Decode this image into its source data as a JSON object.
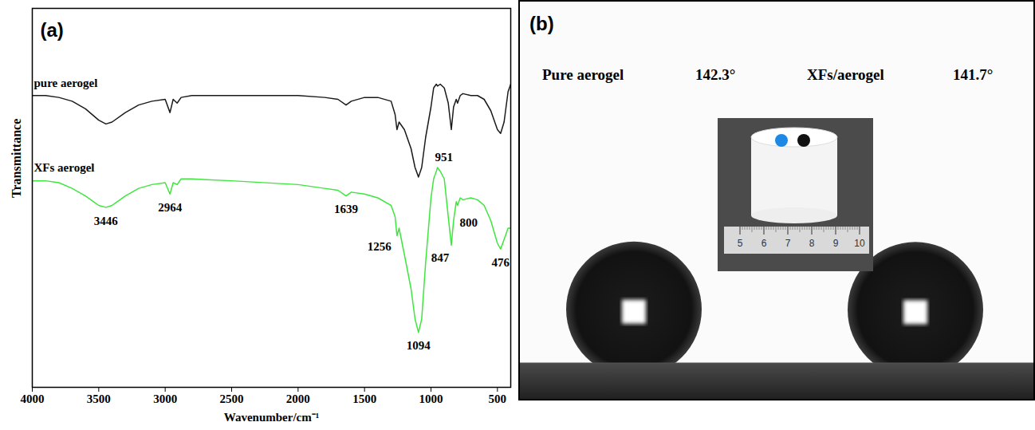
{
  "chart_data": {
    "type": "line",
    "panel": "(a)",
    "xlabel": "Wavenumber/cm⁻¹",
    "ylabel": "Transmittance",
    "xlim": [
      4000,
      400
    ],
    "xticks": [
      4000,
      3500,
      3000,
      2500,
      2000,
      1500,
      1000,
      500
    ],
    "ylim": [
      0,
      100
    ],
    "tick_labels": "x",
    "x": [
      4000,
      3900,
      3800,
      3700,
      3600,
      3500,
      3446,
      3400,
      3300,
      3200,
      3100,
      3000,
      2964,
      2940,
      2910,
      2880,
      2800,
      2500,
      2000,
      1800,
      1700,
      1639,
      1600,
      1500,
      1400,
      1300,
      1270,
      1256,
      1240,
      1200,
      1150,
      1120,
      1094,
      1070,
      1040,
      1000,
      980,
      960,
      951,
      930,
      900,
      870,
      847,
      830,
      810,
      800,
      780,
      760,
      700,
      650,
      600,
      550,
      500,
      476,
      450,
      420,
      400
    ],
    "series": [
      {
        "name": "pure aerogel",
        "color": "#1a1a1a",
        "values": [
          77,
          77,
          76.5,
          75.5,
          73.5,
          70.5,
          69.5,
          70,
          72.5,
          74.5,
          75.5,
          76,
          72.5,
          76,
          75,
          76.5,
          77,
          77,
          77,
          76.5,
          76,
          74.5,
          75.5,
          76.5,
          76.5,
          75.5,
          72,
          68,
          70,
          68,
          63,
          58,
          55.5,
          58,
          66,
          74,
          79,
          80,
          79.5,
          80,
          79,
          75,
          68,
          74,
          76,
          75,
          77,
          77.5,
          77,
          77,
          76,
          73,
          68,
          67,
          70,
          78,
          80
        ]
      },
      {
        "name": "XFs aerogel",
        "color": "#3ee63e",
        "values": [
          54.5,
          54.5,
          54,
          52.5,
          50.5,
          48,
          47.5,
          48,
          50.5,
          52.5,
          53.5,
          54,
          51,
          54,
          53.5,
          55,
          55,
          54.5,
          53.5,
          52.5,
          52,
          50.5,
          51.5,
          51,
          50,
          48,
          45,
          40,
          42,
          35,
          26,
          18,
          14.5,
          18,
          33,
          50,
          55,
          57,
          58,
          57,
          55,
          45,
          37.5,
          44,
          49,
          48,
          50,
          49.5,
          50,
          49.5,
          48,
          44,
          38,
          36.5,
          39,
          42,
          42
        ]
      }
    ],
    "peak_labels": [
      3446,
      2964,
      1639,
      1256,
      1094,
      951,
      847,
      800,
      476
    ]
  },
  "photo": {
    "panel": "(b)",
    "samples": [
      {
        "name": "Pure aerogel",
        "contact_angle": 142.3,
        "contact_angle_label": "142.3°"
      },
      {
        "name": "XFs/aerogel",
        "contact_angle": 141.7,
        "contact_angle_label": "141.7°"
      }
    ],
    "inset_ruler_labels": [
      5,
      6,
      7,
      8,
      9,
      10
    ]
  }
}
